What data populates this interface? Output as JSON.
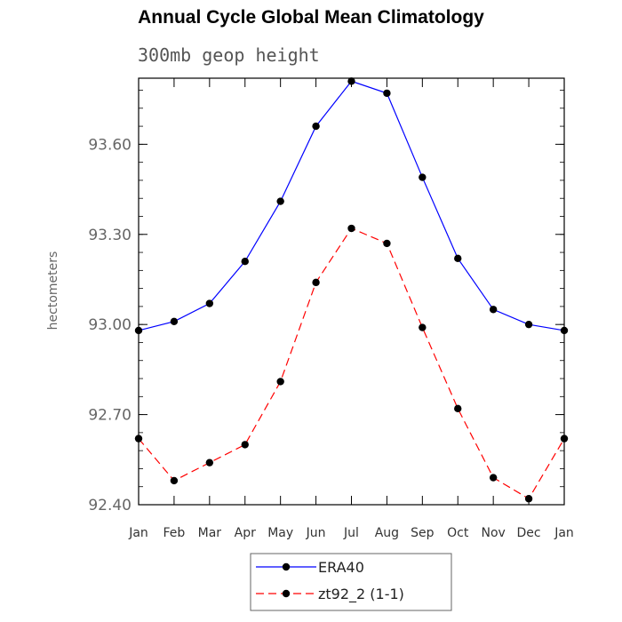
{
  "chart_data": {
    "type": "line",
    "title": "Annual Cycle Global Mean Climatology",
    "subtitle": "300mb geop height",
    "ylabel": "hectometers",
    "xlabel": "",
    "categories": [
      "Jan",
      "Feb",
      "Mar",
      "Apr",
      "May",
      "Jun",
      "Jul",
      "Aug",
      "Sep",
      "Oct",
      "Nov",
      "Dec",
      "Jan"
    ],
    "ylim": [
      92.4,
      93.82
    ],
    "yticks": [
      "92.40",
      "92.70",
      "93.00",
      "93.30",
      "93.60"
    ],
    "grid": false,
    "legend_position": "bottom-center",
    "series": [
      {
        "name": "ERA40",
        "color": "#0000ff",
        "line_style": "solid",
        "values": [
          92.98,
          93.01,
          93.07,
          93.21,
          93.41,
          93.66,
          93.81,
          93.77,
          93.49,
          93.22,
          93.05,
          93.0,
          92.98
        ]
      },
      {
        "name": "zt92_2 (1-1)",
        "color": "#ff0000",
        "line_style": "dashed",
        "values": [
          92.62,
          92.48,
          92.54,
          92.6,
          92.81,
          93.14,
          93.32,
          93.27,
          92.99,
          92.72,
          92.49,
          92.42,
          92.62
        ]
      }
    ]
  }
}
